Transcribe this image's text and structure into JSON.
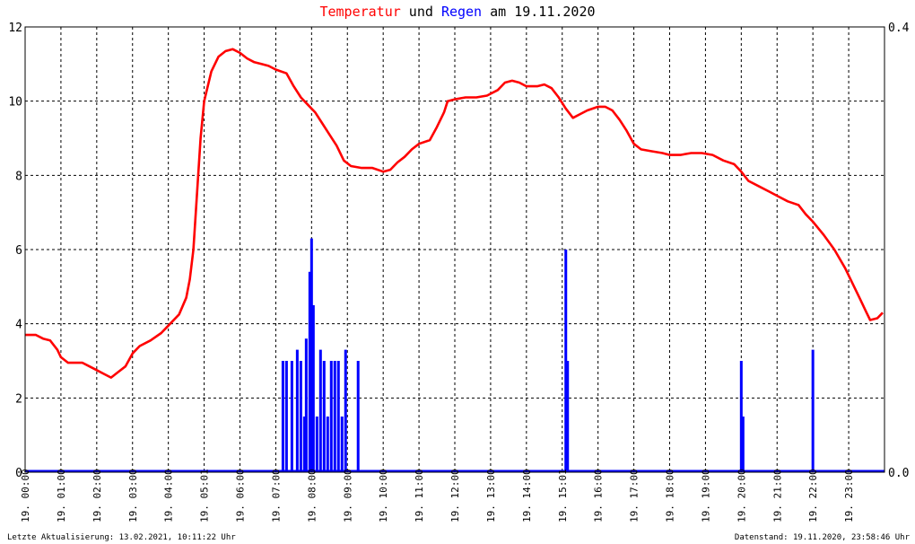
{
  "chart_data": {
    "type": "line",
    "title": {
      "part1": "Temperatur",
      "part2": " und ",
      "part3": "Regen",
      "part4": " am 19.11.2020"
    },
    "colors": {
      "temperature": "#ff0000",
      "rain": "#0000ff",
      "title_text": "#000000",
      "grid": "#000000",
      "frame": "#000000"
    },
    "left_axis": {
      "min": 0,
      "max": 12,
      "ticks": [
        "0",
        "2",
        "4",
        "6",
        "8",
        "10",
        "12"
      ]
    },
    "right_axis": {
      "min": 0.0,
      "max": 0.4,
      "ticks": [
        "0.0",
        "0.4"
      ]
    },
    "x_axis": {
      "min_hour": 0,
      "max_hour": 24,
      "date_prefix": "19.",
      "ticks": [
        "00:00",
        "01:00",
        "02:00",
        "03:00",
        "04:00",
        "05:01",
        "06:00",
        "07:00",
        "08:00",
        "09:00",
        "10:00",
        "11:00",
        "12:00",
        "13:00",
        "14:00",
        "15:01",
        "16:00",
        "17:00",
        "18:00",
        "19:00",
        "20:00",
        "21:00",
        "22:00",
        "23:00"
      ]
    },
    "footer_left": "Letzte Aktualisierung: 13.02.2021, 10:11:22 Uhr",
    "footer_right": "Datenstand: 19.11.2020, 23:58:46 Uhr",
    "series": [
      {
        "name": "Temperatur",
        "axis": "left",
        "points": [
          [
            0.0,
            3.7
          ],
          [
            0.3,
            3.7
          ],
          [
            0.5,
            3.6
          ],
          [
            0.7,
            3.55
          ],
          [
            0.9,
            3.3
          ],
          [
            1.0,
            3.1
          ],
          [
            1.2,
            2.95
          ],
          [
            1.4,
            2.95
          ],
          [
            1.6,
            2.95
          ],
          [
            1.8,
            2.85
          ],
          [
            2.0,
            2.75
          ],
          [
            2.2,
            2.65
          ],
          [
            2.4,
            2.55
          ],
          [
            2.6,
            2.7
          ],
          [
            2.8,
            2.85
          ],
          [
            3.0,
            3.2
          ],
          [
            3.2,
            3.4
          ],
          [
            3.5,
            3.55
          ],
          [
            3.8,
            3.75
          ],
          [
            4.0,
            3.95
          ],
          [
            4.3,
            4.25
          ],
          [
            4.5,
            4.7
          ],
          [
            4.6,
            5.2
          ],
          [
            4.7,
            6.0
          ],
          [
            4.8,
            7.5
          ],
          [
            4.9,
            9.0
          ],
          [
            5.0,
            10.0
          ],
          [
            5.2,
            10.8
          ],
          [
            5.4,
            11.2
          ],
          [
            5.6,
            11.35
          ],
          [
            5.8,
            11.4
          ],
          [
            6.0,
            11.3
          ],
          [
            6.2,
            11.15
          ],
          [
            6.4,
            11.05
          ],
          [
            6.6,
            11.0
          ],
          [
            6.8,
            10.95
          ],
          [
            7.0,
            10.85
          ],
          [
            7.3,
            10.75
          ],
          [
            7.5,
            10.4
          ],
          [
            7.7,
            10.1
          ],
          [
            7.9,
            9.9
          ],
          [
            8.1,
            9.7
          ],
          [
            8.3,
            9.4
          ],
          [
            8.5,
            9.1
          ],
          [
            8.7,
            8.8
          ],
          [
            8.9,
            8.4
          ],
          [
            9.1,
            8.25
          ],
          [
            9.4,
            8.2
          ],
          [
            9.7,
            8.2
          ],
          [
            10.0,
            8.1
          ],
          [
            10.2,
            8.15
          ],
          [
            10.4,
            8.35
          ],
          [
            10.6,
            8.5
          ],
          [
            10.8,
            8.7
          ],
          [
            11.0,
            8.85
          ],
          [
            11.3,
            8.95
          ],
          [
            11.5,
            9.3
          ],
          [
            11.7,
            9.7
          ],
          [
            11.8,
            10.0
          ],
          [
            12.0,
            10.05
          ],
          [
            12.3,
            10.1
          ],
          [
            12.6,
            10.1
          ],
          [
            12.9,
            10.15
          ],
          [
            13.2,
            10.3
          ],
          [
            13.4,
            10.5
          ],
          [
            13.6,
            10.55
          ],
          [
            13.8,
            10.5
          ],
          [
            14.0,
            10.4
          ],
          [
            14.3,
            10.4
          ],
          [
            14.5,
            10.45
          ],
          [
            14.7,
            10.35
          ],
          [
            14.9,
            10.1
          ],
          [
            15.1,
            9.8
          ],
          [
            15.3,
            9.55
          ],
          [
            15.5,
            9.65
          ],
          [
            15.7,
            9.75
          ],
          [
            16.0,
            9.85
          ],
          [
            16.2,
            9.85
          ],
          [
            16.4,
            9.75
          ],
          [
            16.6,
            9.5
          ],
          [
            16.8,
            9.2
          ],
          [
            17.0,
            8.85
          ],
          [
            17.2,
            8.7
          ],
          [
            17.5,
            8.65
          ],
          [
            17.8,
            8.6
          ],
          [
            18.0,
            8.55
          ],
          [
            18.3,
            8.55
          ],
          [
            18.6,
            8.6
          ],
          [
            18.9,
            8.6
          ],
          [
            19.2,
            8.55
          ],
          [
            19.5,
            8.4
          ],
          [
            19.8,
            8.3
          ],
          [
            20.0,
            8.1
          ],
          [
            20.2,
            7.85
          ],
          [
            20.5,
            7.7
          ],
          [
            20.8,
            7.55
          ],
          [
            21.0,
            7.45
          ],
          [
            21.3,
            7.3
          ],
          [
            21.6,
            7.2
          ],
          [
            21.8,
            6.95
          ],
          [
            22.0,
            6.75
          ],
          [
            22.3,
            6.4
          ],
          [
            22.6,
            6.0
          ],
          [
            22.9,
            5.5
          ],
          [
            23.1,
            5.1
          ],
          [
            23.3,
            4.7
          ],
          [
            23.5,
            4.3
          ],
          [
            23.6,
            4.1
          ],
          [
            23.8,
            4.15
          ],
          [
            23.95,
            4.3
          ]
        ]
      },
      {
        "name": "Regen",
        "axis": "right",
        "bars": [
          [
            7.2,
            0.1
          ],
          [
            7.3,
            0.1
          ],
          [
            7.45,
            0.1
          ],
          [
            7.6,
            0.11
          ],
          [
            7.7,
            0.1
          ],
          [
            7.8,
            0.05
          ],
          [
            7.85,
            0.12
          ],
          [
            7.95,
            0.18
          ],
          [
            8.0,
            0.21
          ],
          [
            8.05,
            0.15
          ],
          [
            8.15,
            0.05
          ],
          [
            8.25,
            0.11
          ],
          [
            8.35,
            0.1
          ],
          [
            8.45,
            0.05
          ],
          [
            8.55,
            0.1
          ],
          [
            8.65,
            0.1
          ],
          [
            8.75,
            0.1
          ],
          [
            8.85,
            0.05
          ],
          [
            8.95,
            0.11
          ],
          [
            9.3,
            0.1
          ],
          [
            15.1,
            0.2
          ],
          [
            15.15,
            0.1
          ],
          [
            20.0,
            0.1
          ],
          [
            20.05,
            0.05
          ],
          [
            22.0,
            0.11
          ]
        ]
      }
    ]
  }
}
